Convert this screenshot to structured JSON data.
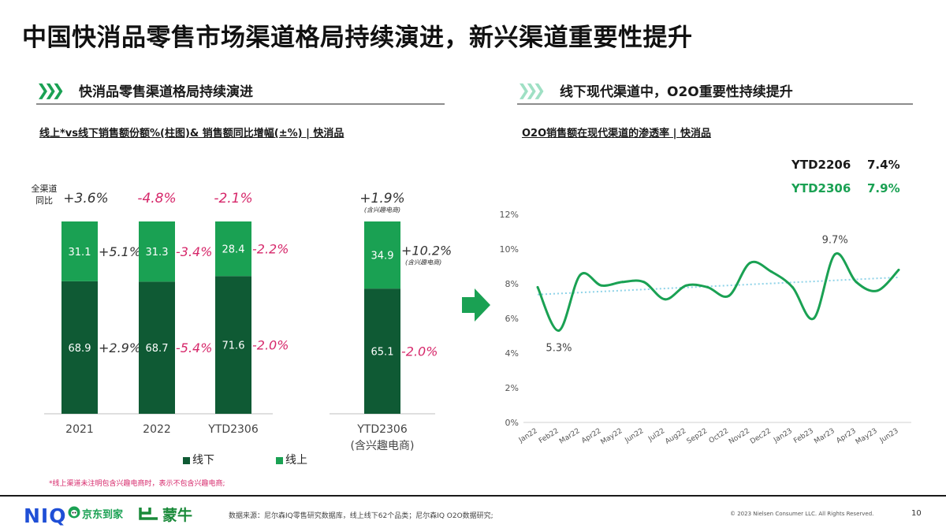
{
  "title": "中国快消品零售市场渠道格局持续演进，新兴渠道重要性提升",
  "left": {
    "heading": "快消品零售渠道格局持续演进",
    "subtitle": "线上*vs线下销售额份额%(柱图)& 销售额同比增幅(±%) | 快消品",
    "total_label_line1": "全渠道",
    "total_label_line2": "同比",
    "legend_offline": "线下",
    "legend_online": "线上",
    "footnote": "*线上渠道未注明包含兴趣电商时，表示不包含兴趣电商;"
  },
  "right": {
    "heading": "线下现代渠道中，O2O重要性持续提升",
    "subtitle": "O2O销售额在现代渠道的渗透率 | 快消品",
    "ytd_rows": [
      {
        "label": "YTD2206",
        "value": "7.4%",
        "color": "#333333"
      },
      {
        "label": "YTD2306",
        "value": "7.9%",
        "color": "#1aa153"
      }
    ]
  },
  "footer": {
    "logo": "NIQ",
    "brand1": "京东到家",
    "brand2": "蒙牛",
    "source": "数据来源：尼尔森IQ零售研究数据库，线上线下62个品类；尼尔森IQ O2O数据研究;",
    "copyright": "© 2023 Nielsen Consumer LLC. All Rights Reserved.",
    "page": "10"
  },
  "colors": {
    "offline": "#0f5a34",
    "online": "#1aa153",
    "positive": "#333333",
    "negative": "#d6276a",
    "line": "#1aa153",
    "trend": "#8fd3e8"
  },
  "chart_data": [
    {
      "type": "bar",
      "stacked": true,
      "categories": [
        "2021",
        "2022",
        "YTD2306",
        "YTD2306\n(含兴趣电商)"
      ],
      "series": [
        {
          "name": "线下",
          "values": [
            68.9,
            68.7,
            71.6,
            65.1
          ]
        },
        {
          "name": "线上",
          "values": [
            31.1,
            31.3,
            28.4,
            34.9
          ]
        }
      ],
      "offline_growth": [
        "+2.9%",
        "-5.4%",
        "-2.0%",
        "-2.0%"
      ],
      "online_growth": [
        "+5.1%",
        "-3.4%",
        "-2.2%",
        "+10.2%"
      ],
      "online_growth_note": [
        "",
        "",
        "",
        "(含兴趣电商)"
      ],
      "total_growth": [
        "+3.6%",
        "-4.8%",
        "-2.1%",
        "+1.9%"
      ],
      "total_growth_note": [
        "",
        "",
        "",
        "(含兴趣电商)"
      ],
      "ylim": [
        0,
        100
      ]
    },
    {
      "type": "line",
      "x": [
        "Jan22",
        "Feb22",
        "Mar22",
        "Apr22",
        "May22",
        "Jun22",
        "Jul22",
        "Aug22",
        "Sep22",
        "Oct22",
        "Nov22",
        "Dec22",
        "Jan23",
        "Feb23",
        "Mar23",
        "Apr23",
        "May23",
        "Jun23"
      ],
      "values": [
        7.8,
        5.3,
        8.5,
        7.9,
        8.1,
        8.1,
        7.1,
        7.9,
        7.8,
        7.3,
        9.2,
        8.7,
        7.8,
        6.0,
        9.7,
        8.1,
        7.6,
        8.8
      ],
      "annotations": [
        {
          "index": 1,
          "text": "5.3%"
        },
        {
          "index": 14,
          "text": "9.7%"
        }
      ],
      "trendline": true,
      "ylim": [
        0,
        12
      ],
      "yticks": [
        "0%",
        "2%",
        "4%",
        "6%",
        "8%",
        "10%",
        "12%"
      ]
    }
  ]
}
